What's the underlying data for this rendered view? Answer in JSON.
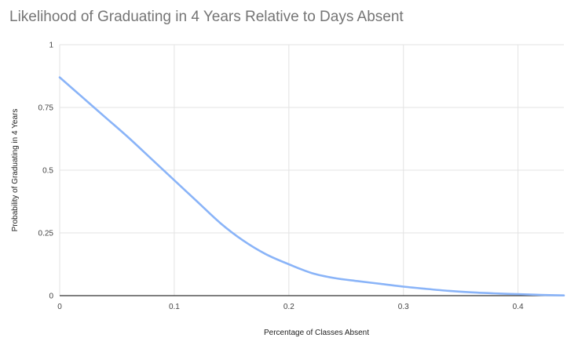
{
  "chart_data": {
    "type": "line",
    "title": "Likelihood of Graduating in 4 Years Relative to Days Absent",
    "xlabel": "Percentage of Classes Absent",
    "ylabel": "Probability of Graduating in 4 Years",
    "xlim": [
      0,
      0.44
    ],
    "ylim": [
      0,
      1
    ],
    "x_ticks": [
      0,
      0.1,
      0.2,
      0.3,
      0.4
    ],
    "x_tick_labels": [
      "0",
      "0.1",
      "0.2",
      "0.3",
      "0.4"
    ],
    "y_ticks": [
      0,
      0.25,
      0.5,
      0.75,
      1
    ],
    "y_tick_labels": [
      "0",
      "0.25",
      "0.5",
      "0.75",
      "1"
    ],
    "grid": true,
    "legend": "none",
    "series": [
      {
        "color": "#8ab4f8",
        "x": [
          0,
          0.02,
          0.04,
          0.06,
          0.08,
          0.1,
          0.12,
          0.14,
          0.16,
          0.18,
          0.2,
          0.22,
          0.24,
          0.26,
          0.28,
          0.3,
          0.32,
          0.34,
          0.36,
          0.38,
          0.4,
          0.42,
          0.44
        ],
        "y": [
          0.87,
          0.79,
          0.71,
          0.63,
          0.545,
          0.46,
          0.375,
          0.29,
          0.22,
          0.165,
          0.125,
          0.09,
          0.07,
          0.058,
          0.047,
          0.036,
          0.027,
          0.019,
          0.013,
          0.009,
          0.006,
          0.003,
          0.001
        ]
      }
    ]
  }
}
